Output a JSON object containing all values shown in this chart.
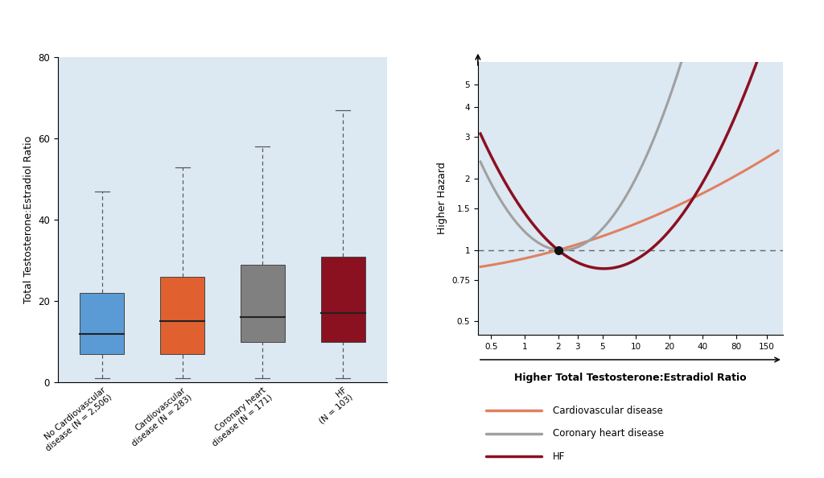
{
  "panel_a": {
    "boxes": [
      {
        "label": "No Cardiovascular\ndisease (N = 2,506)",
        "color": "#5b9bd5",
        "whisker_low": 1,
        "q1": 7,
        "median": 12,
        "q3": 22,
        "whisker_high": 47
      },
      {
        "label": "Cardiovascular\ndisease (N = 283)",
        "color": "#e06030",
        "whisker_low": 1,
        "q1": 7,
        "median": 15,
        "q3": 26,
        "whisker_high": 53
      },
      {
        "label": "Coronary heart\ndisease (N = 171)",
        "color": "#808080",
        "whisker_low": 1,
        "q1": 10,
        "median": 16,
        "q3": 29,
        "whisker_high": 58
      },
      {
        "label": "HF\n(N = 103)",
        "color": "#8b1020",
        "whisker_low": 1,
        "q1": 10,
        "median": 17,
        "q3": 31,
        "whisker_high": 67
      }
    ],
    "ylabel": "Total Testosterone:Estradiol Ratio",
    "ylim": [
      0,
      80
    ],
    "yticks": [
      0,
      20,
      40,
      60,
      80
    ],
    "bg_color": "#dce8f2"
  },
  "panel_b": {
    "xtick_labels": [
      "0.5",
      "1",
      "2",
      "3",
      "5",
      "10",
      "20",
      "40",
      "80",
      "150"
    ],
    "xtick_values": [
      0.5,
      1,
      2,
      3,
      5,
      10,
      20,
      40,
      80,
      150
    ],
    "ytick_labels": [
      "0.5",
      "0.75",
      "1",
      "1.5",
      "2",
      "3",
      "4",
      "5"
    ],
    "ytick_values": [
      0.5,
      0.75,
      1.0,
      1.5,
      2.0,
      3.0,
      4.0,
      5.0
    ],
    "ylabel": "Higher Hazard",
    "xlabel": "Higher Total Testosterone:Estradiol Ratio",
    "bg_color": "#dce8f2",
    "ref_point_x": 2,
    "ref_point_y": 1.0,
    "cv_color": "#e08060",
    "chd_color": "#a0a0a0",
    "hf_color": "#8b1020",
    "cv_label": "Cardiovascular disease",
    "chd_label": "Coronary heart disease",
    "hf_label": "HF"
  },
  "header_color": "#5599cc",
  "header_text_color": "#ffffff",
  "bg_outer": "#ffffff"
}
